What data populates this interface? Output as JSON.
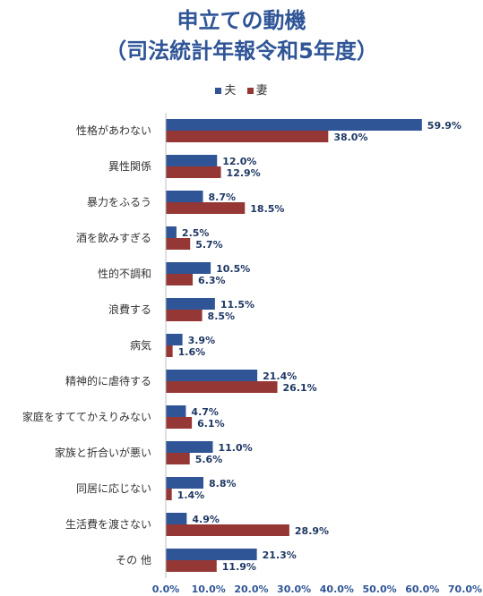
{
  "chart_data": {
    "type": "bar",
    "orientation": "horizontal",
    "title_lines": [
      "申立ての動機",
      "（司法統計年報令和5年度）"
    ],
    "categories": [
      "性格があわない",
      "異性関係",
      "暴力をふるう",
      "酒を飲みすぎる",
      "性的不調和",
      "浪費する",
      "病気",
      "精神的に虐待する",
      "家庭をすててかえりみない",
      "家族と折合いが悪い",
      "同居に応じない",
      "生活費を渡さない",
      "その 他"
    ],
    "series": [
      {
        "name": "夫",
        "color": "#2F5597",
        "values": [
          59.9,
          12.0,
          8.7,
          2.5,
          10.5,
          11.5,
          3.9,
          21.4,
          4.7,
          11.0,
          8.8,
          4.9,
          21.3
        ],
        "labels": [
          "59.9%",
          "12.0%",
          "8.7%",
          "2.5%",
          "10.5%",
          "11.5%",
          "3.9%",
          "21.4%",
          "4.7%",
          "11.0%",
          "8.8%",
          "4.9%",
          "21.3%"
        ]
      },
      {
        "name": "妻",
        "color": "#953735",
        "values": [
          38.0,
          12.9,
          18.5,
          5.7,
          6.3,
          8.5,
          1.6,
          26.1,
          6.1,
          5.6,
          1.4,
          28.9,
          11.9
        ],
        "labels": [
          "38.0%",
          "12.9%",
          "18.5%",
          "5.7%",
          "6.3%",
          "8.5%",
          "1.6%",
          "26.1%",
          "6.1%",
          "5.6%",
          "1.4%",
          "28.9%",
          "11.9%"
        ]
      }
    ],
    "xlim": [
      0,
      70
    ],
    "x_ticks": [
      "0.0%",
      "10.0%",
      "20.0%",
      "30.0%",
      "40.0%",
      "50.0%",
      "60.0%",
      "70.0%"
    ],
    "grid": false,
    "legend_position": "top"
  }
}
